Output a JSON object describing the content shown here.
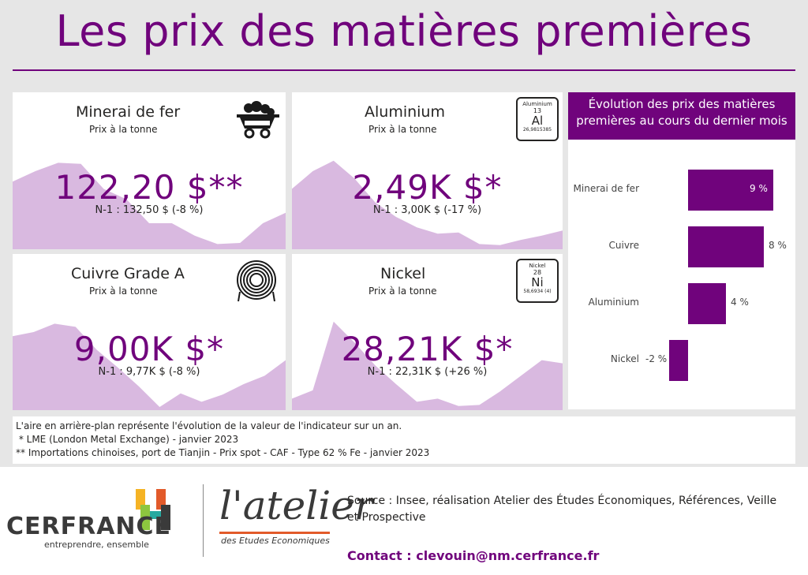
{
  "page": {
    "title": "Les prix des matières premières",
    "accent": "#70037c",
    "area_color": "#d9b9e0"
  },
  "cards": [
    {
      "name": "Minerai de fer",
      "sub": "Prix à la tonne",
      "value": "122,20 $**",
      "prev": "N-1 : 132,50 $ (-8 %)",
      "icon": "mine-cart-icon",
      "trend": [
        0.62,
        0.72,
        0.8,
        0.79,
        0.55,
        0.45,
        0.22,
        0.22,
        0.1,
        0.02,
        0.03,
        0.22,
        0.32
      ]
    },
    {
      "name": "Aluminium",
      "sub": "Prix à la tonne",
      "value": "2,49K $*",
      "prev": "N-1 : 3,00K $ (-17 %)",
      "icon": "periodic-element-icon",
      "element": {
        "name": "Aluminium",
        "number": "13",
        "symbol": "Al",
        "mass": "26,9815385"
      },
      "trend": [
        0.55,
        0.72,
        0.82,
        0.65,
        0.42,
        0.28,
        0.18,
        0.12,
        0.13,
        0.02,
        0.01,
        0.06,
        0.1,
        0.15
      ]
    },
    {
      "name": "Cuivre Grade A",
      "sub": "Prix à la tonne",
      "value": "9,00K $*",
      "prev": "N-1 : 9,77K $ (-8 %)",
      "icon": "copper-coil-icon",
      "trend": [
        0.68,
        0.72,
        0.8,
        0.77,
        0.55,
        0.38,
        0.2,
        0.0,
        0.13,
        0.05,
        0.12,
        0.22,
        0.3,
        0.45
      ]
    },
    {
      "name": "Nickel",
      "sub": "Prix à la tonne",
      "value": "28,21K $*",
      "prev": "N-1 : 22,31K $ (+26 %)",
      "icon": "periodic-element-icon",
      "element": {
        "name": "Nickel",
        "number": "28",
        "symbol": "Ni",
        "mass": "58,6934 (4)"
      },
      "trend": [
        0.08,
        0.16,
        0.82,
        0.62,
        0.4,
        0.22,
        0.05,
        0.08,
        0.01,
        0.02,
        0.15,
        0.3,
        0.45,
        0.42
      ]
    }
  ],
  "bar_panel": {
    "title": "Évolution des prix des matières premières au cours du dernier mois"
  },
  "chart_data": {
    "type": "bar",
    "orientation": "horizontal",
    "categories": [
      "Minerai de fer",
      "Cuivre",
      "Aluminium",
      "Nickel"
    ],
    "values": [
      9,
      8,
      4,
      -2
    ],
    "labels": [
      "9 %",
      "8 %",
      "4 %",
      "-2 %"
    ],
    "color": "#70037c"
  },
  "notes": [
    "L'aire en arrière-plan représente l'évolution de la valeur de l'indicateur sur un an.",
    " * LME (London Metal Exchange) - janvier 2023",
    "** Importations chinoises, port de Tianjin - Prix spot - CAF - Type 62 % Fe - janvier 2023"
  ],
  "footer": {
    "cerfrance": "CERFRANCE",
    "cerfrance_tagline": "entreprendre, ensemble",
    "atelier": "l'atelier",
    "atelier_sub": "des Etudes Economiques",
    "source": "Source : Insee, réalisation Atelier des Études Économiques, Références, Veille et Prospective",
    "contact": "Contact : clevouin@nm.cerfrance.fr"
  }
}
